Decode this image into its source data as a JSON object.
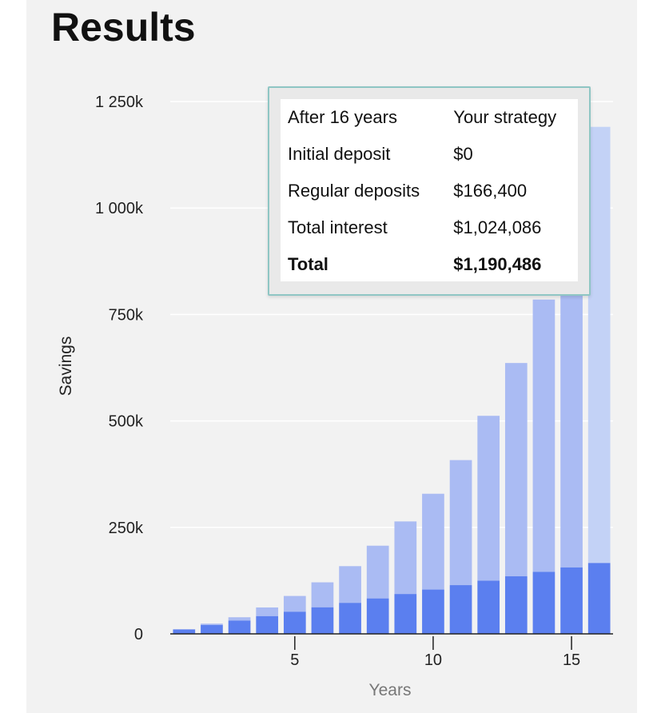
{
  "page": {
    "title": "Results"
  },
  "colors": {
    "background": "#f2f2f2",
    "deposits_bar": "#5b7fef",
    "interest_bar": "#aabbf3",
    "highlight_interest_bar": "#c3d2f6",
    "tooltip_border": "#8fc6c4"
  },
  "tooltip": {
    "header": [
      "After 16 years",
      "Your strategy"
    ],
    "rows": [
      {
        "label": "Initial deposit",
        "value": "$0"
      },
      {
        "label": "Regular deposits",
        "value": "$166,400"
      },
      {
        "label": "Total interest",
        "value": "$1,024,086"
      },
      {
        "label": "Total",
        "value": "$1,190,486",
        "bold": true
      }
    ]
  },
  "chart_data": {
    "type": "bar",
    "stacked": true,
    "title": "",
    "xlabel": "Years",
    "ylabel": "Savings",
    "x": [
      1,
      2,
      3,
      4,
      5,
      6,
      7,
      8,
      9,
      10,
      11,
      12,
      13,
      14,
      15,
      16
    ],
    "xlim": [
      0.5,
      16.5
    ],
    "x_ticks": [
      5,
      10,
      15
    ],
    "x_tick_labels": [
      "5",
      "10",
      "15"
    ],
    "ylim": [
      0,
      1250000
    ],
    "y_ticks": [
      0,
      250000,
      500000,
      750000,
      1000000,
      1250000
    ],
    "y_tick_labels": [
      "0",
      "250k",
      "500k",
      "750k",
      "1 000k",
      "1 250k"
    ],
    "grid": true,
    "highlighted_index": 15,
    "series": [
      {
        "name": "Regular deposits",
        "values": [
          10400,
          20800,
          31200,
          41600,
          52000,
          62400,
          72800,
          83200,
          93600,
          104000,
          114400,
          124800,
          135200,
          145600,
          156000,
          166400
        ]
      },
      {
        "name": "Total interest",
        "values": [
          300,
          3200,
          7800,
          20400,
          37000,
          58600,
          86200,
          123800,
          170400,
          225000,
          293600,
          387200,
          500800,
          639400,
          728000,
          1024086
        ]
      }
    ]
  }
}
